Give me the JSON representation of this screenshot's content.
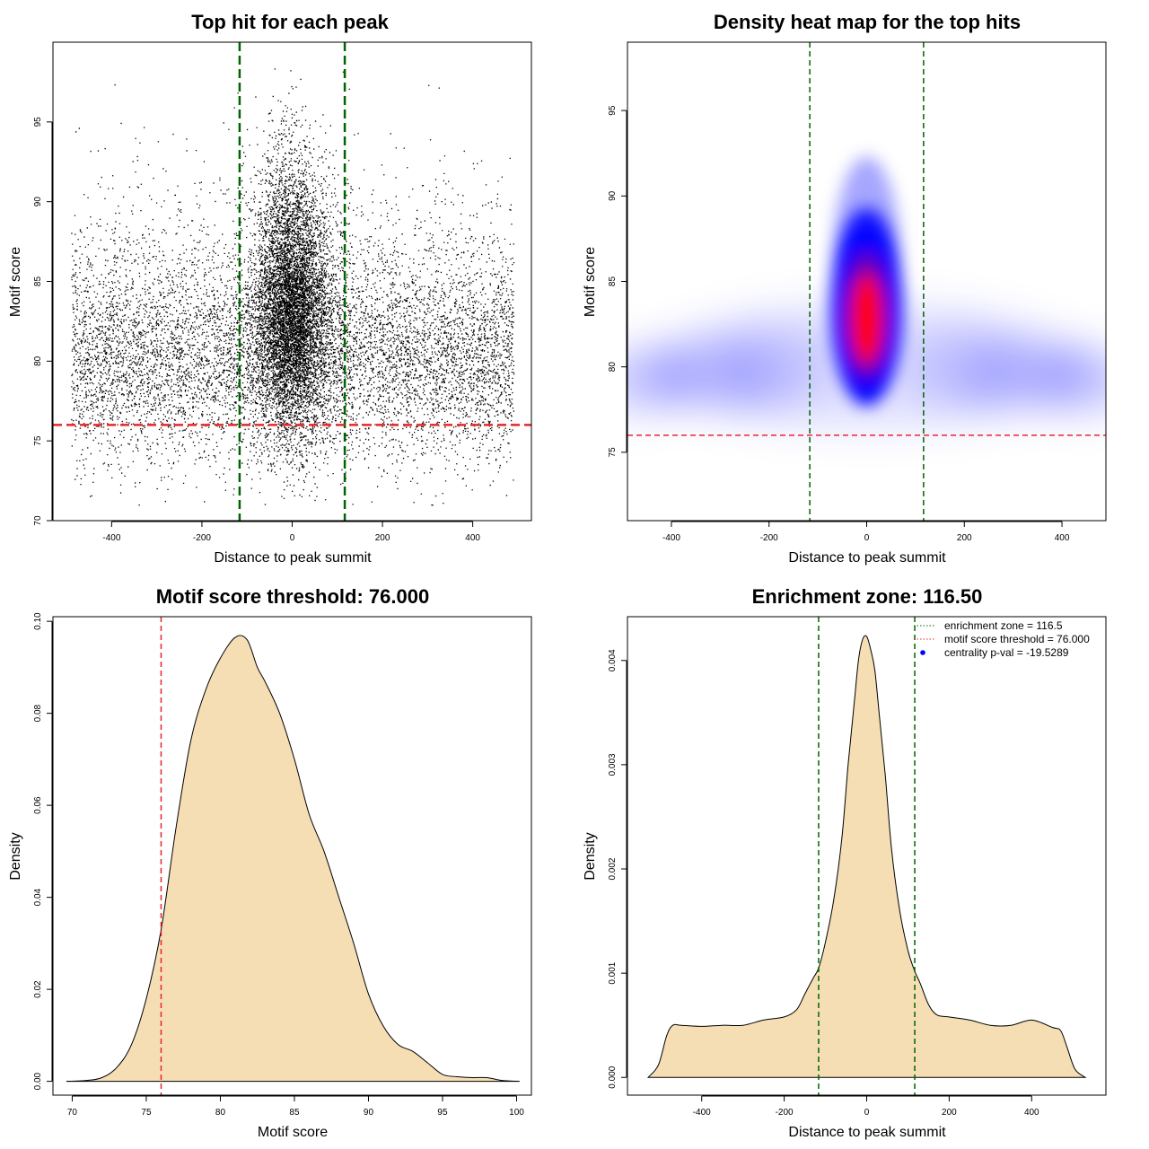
{
  "chart_data": [
    {
      "id": "scatter",
      "type": "scatter",
      "title": "Top hit for each peak",
      "xlabel": "Distance to peak summit",
      "ylabel": "Motif score",
      "xlim": [
        -530,
        530
      ],
      "ylim": [
        70,
        100
      ],
      "xticks": [
        "-400",
        "-200",
        "0",
        "200",
        "400"
      ],
      "yticks": [
        "70",
        "75",
        "80",
        "85",
        "90",
        "95"
      ],
      "vlines": [
        -116.5,
        116.5
      ],
      "hline": 76,
      "n_points": 16000,
      "point_color": "#000000",
      "vline_color": "#006400",
      "hline_color": "#e8262c"
    },
    {
      "id": "heatmap",
      "type": "heatmap",
      "title": "Density heat map for the top hits",
      "xlabel": "Distance to peak summit",
      "ylabel": "Motif score",
      "xlim": [
        -490,
        490
      ],
      "ylim": [
        71,
        99
      ],
      "xticks": [
        "-400",
        "-200",
        "0",
        "200",
        "400"
      ],
      "yticks": [
        "75",
        "80",
        "85",
        "90",
        "95"
      ],
      "vlines": [
        -116.5,
        116.5
      ],
      "hline": 76,
      "colors": {
        "low": "#ffffff",
        "mid": "#0000ff",
        "high": "#ff0000"
      }
    },
    {
      "id": "score-density",
      "type": "area",
      "title": "Motif score threshold: 76.000",
      "xlabel": "Motif score",
      "ylabel": "Density",
      "xlim": [
        68.7,
        101
      ],
      "ylim": [
        -0.003,
        0.101
      ],
      "xticks": [
        "70",
        "75",
        "80",
        "85",
        "90",
        "95",
        "100"
      ],
      "yticks": [
        "0.00",
        "0.02",
        "0.04",
        "0.06",
        "0.08",
        "0.10"
      ],
      "x": [
        69.6,
        71,
        72,
        73,
        74,
        75,
        76,
        77,
        78,
        79,
        80,
        81,
        81.8,
        82.5,
        83,
        84,
        85,
        86,
        87,
        88,
        89,
        90,
        91,
        92,
        93,
        94,
        95,
        96,
        97,
        98,
        99,
        100.2
      ],
      "y": [
        0,
        0.0002,
        0.0008,
        0.003,
        0.008,
        0.018,
        0.033,
        0.055,
        0.074,
        0.085,
        0.092,
        0.0965,
        0.096,
        0.09,
        0.087,
        0.08,
        0.07,
        0.058,
        0.05,
        0.04,
        0.03,
        0.019,
        0.012,
        0.008,
        0.0065,
        0.004,
        0.0015,
        0.001,
        0.0008,
        0.0008,
        0.0002,
        0
      ],
      "vline": 76,
      "fill": "#f5deb3",
      "vline_color": "#e8262c"
    },
    {
      "id": "distance-density",
      "type": "area",
      "title": "Enrichment zone: 116.50",
      "xlabel": "Distance to peak summit",
      "ylabel": "Density",
      "xlim": [
        -580,
        580
      ],
      "ylim": [
        -0.00017,
        0.00442
      ],
      "xticks": [
        "-400",
        "-200",
        "0",
        "200",
        "400"
      ],
      "yticks": [
        "0.000",
        "0.001",
        "0.002",
        "0.003",
        "0.004"
      ],
      "x": [
        -530,
        -505,
        -485,
        -470,
        -450,
        -400,
        -350,
        -300,
        -250,
        -200,
        -170,
        -150,
        -130,
        -116.5,
        -100,
        -80,
        -60,
        -45,
        -30,
        -20,
        -10,
        0,
        10,
        20,
        30,
        45,
        60,
        80,
        100,
        116.5,
        130,
        150,
        170,
        200,
        250,
        300,
        350,
        400,
        450,
        470,
        485,
        505,
        530
      ],
      "y": [
        0,
        0.00012,
        0.0004,
        0.0005,
        0.0005,
        0.00049,
        0.0005,
        0.0005,
        0.00055,
        0.00058,
        0.00065,
        0.0008,
        0.00095,
        0.00105,
        0.0013,
        0.0017,
        0.0023,
        0.003,
        0.0036,
        0.004,
        0.0042,
        0.00423,
        0.0041,
        0.0039,
        0.0035,
        0.0029,
        0.0022,
        0.0016,
        0.00122,
        0.00102,
        0.0009,
        0.0007,
        0.0006,
        0.00058,
        0.00055,
        0.0005,
        0.0005,
        0.00055,
        0.00048,
        0.00045,
        0.0003,
        8e-05,
        0
      ],
      "vlines": [
        -116.5,
        116.5
      ],
      "fill": "#f5deb3",
      "vline_color": "#006400",
      "legend": [
        {
          "label": "enrichment zone = 116.5",
          "color": "#006400",
          "kind": "dotted"
        },
        {
          "label": "motif score threshold = 76.000",
          "color": "#e8262c",
          "kind": "dotted"
        },
        {
          "label": "centrality p-val = -19.5289",
          "color": "#0000ff",
          "kind": "point"
        }
      ]
    }
  ]
}
